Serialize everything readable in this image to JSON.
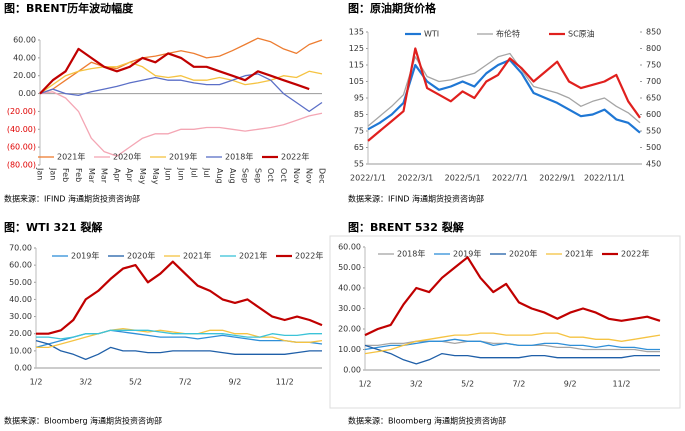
{
  "chart_data": [
    {
      "type": "line",
      "title": "图：BRENT历年波动幅度",
      "source": "数据来源：IFIND   海通期货投资咨询部",
      "categories": [
        "Jan",
        "Jan",
        "Feb",
        "Feb",
        "Mar",
        "Mar",
        "Apr",
        "Apr",
        "May",
        "May",
        "Jun",
        "Jun",
        "Jul",
        "Jul",
        "Aug",
        "Aug",
        "Sep",
        "Sep",
        "Oct",
        "Oct",
        "Nov",
        "Nov",
        "Dec"
      ],
      "ylim": [
        -80,
        60
      ],
      "yticks": [
        {
          "value": 60,
          "label": "60.00"
        },
        {
          "value": 40,
          "label": "40.00"
        },
        {
          "value": 20,
          "label": "20.00"
        },
        {
          "value": 0,
          "label": "0.00"
        },
        {
          "value": -20,
          "label": "(20.00)"
        },
        {
          "value": -40,
          "label": "(40.00)"
        },
        {
          "value": -60,
          "label": "(60.00)"
        },
        {
          "value": -80,
          "label": "(80.00)"
        }
      ],
      "grid": false,
      "rotate_x_labels": true,
      "series": [
        {
          "name": "2021年",
          "color": "#ed7d31",
          "values": [
            0,
            5,
            15,
            25,
            35,
            30,
            28,
            35,
            40,
            42,
            45,
            48,
            45,
            40,
            42,
            48,
            55,
            62,
            58,
            50,
            45,
            55,
            60
          ]
        },
        {
          "name": "2020年",
          "color": "#f4a6b4",
          "values": [
            0,
            2,
            -5,
            -20,
            -50,
            -65,
            -70,
            -60,
            -50,
            -45,
            -45,
            -40,
            -40,
            -38,
            -38,
            -40,
            -42,
            -40,
            -38,
            -35,
            -30,
            -25,
            -22
          ]
        },
        {
          "name": "2019年",
          "color": "#f5c342",
          "values": [
            0,
            10,
            20,
            25,
            28,
            30,
            30,
            35,
            30,
            20,
            18,
            20,
            15,
            15,
            18,
            15,
            10,
            12,
            15,
            20,
            18,
            25,
            22
          ]
        },
        {
          "name": "2018年",
          "color": "#5b6fc7",
          "values": [
            0,
            5,
            0,
            -2,
            2,
            5,
            8,
            12,
            15,
            18,
            15,
            15,
            12,
            10,
            10,
            15,
            20,
            22,
            15,
            0,
            -10,
            -20,
            -10
          ]
        },
        {
          "name": "2022年",
          "color": "#c00000",
          "values": [
            0,
            15,
            25,
            50,
            40,
            30,
            25,
            30,
            40,
            35,
            45,
            40,
            30,
            30,
            25,
            20,
            15,
            25,
            20,
            15,
            10,
            5,
            null
          ]
        }
      ]
    },
    {
      "type": "line",
      "title": "图：原油期货价格",
      "source": "数据来源：IFIND   海通期货投资咨询部",
      "categories": [
        "2022/1/1",
        null,
        null,
        null,
        "2022/3/1",
        null,
        null,
        null,
        "2022/5/1",
        null,
        null,
        null,
        "2022/7/1",
        null,
        null,
        null,
        "2022/9/1",
        null,
        null,
        null,
        "2022/11/1",
        null,
        null,
        null
      ],
      "ylim": [
        55,
        135
      ],
      "yticks": [
        55,
        65,
        75,
        85,
        95,
        105,
        115,
        125,
        135
      ],
      "y2lim": [
        450,
        850
      ],
      "y2ticks": [
        450,
        500,
        550,
        600,
        650,
        700,
        750,
        800,
        850
      ],
      "grid": false,
      "rotate_x_labels": false,
      "series": [
        {
          "name": "WTI",
          "color": "#1f77d4",
          "values": [
            76,
            80,
            85,
            92,
            115,
            105,
            100,
            102,
            105,
            102,
            110,
            115,
            118,
            110,
            98,
            95,
            92,
            88,
            84,
            85,
            88,
            82,
            80,
            74
          ]
        },
        {
          "name": "布伦特",
          "color": "#a5a5a5",
          "values": [
            78,
            84,
            90,
            97,
            120,
            108,
            105,
            106,
            108,
            110,
            115,
            120,
            122,
            112,
            102,
            100,
            98,
            95,
            90,
            93,
            95,
            90,
            86,
            80
          ]
        },
        {
          "name": "SC原油",
          "color": "#e0201e",
          "axis": "y2",
          "values": [
            520,
            550,
            580,
            610,
            800,
            680,
            660,
            640,
            670,
            650,
            700,
            720,
            770,
            740,
            700,
            730,
            760,
            700,
            680,
            690,
            700,
            720,
            640,
            590
          ]
        }
      ]
    },
    {
      "type": "line",
      "title": "图：WTI 321 裂解",
      "source": "数据来源：Bloomberg   海通期货投资咨询部",
      "categories": [
        "1/2",
        null,
        null,
        null,
        "3/2",
        null,
        null,
        null,
        "5/2",
        null,
        null,
        null,
        "7/2",
        null,
        null,
        null,
        "9/2",
        null,
        null,
        null,
        "11/2",
        null,
        null,
        null
      ],
      "ylim": [
        0,
        70
      ],
      "yticks": [
        {
          "value": 0,
          "label": "0.00"
        },
        {
          "value": 10,
          "label": "10.00"
        },
        {
          "value": 20,
          "label": "20.00"
        },
        {
          "value": 30,
          "label": "30.00"
        },
        {
          "value": 40,
          "label": "40.00"
        },
        {
          "value": 50,
          "label": "50.00"
        },
        {
          "value": 60,
          "label": "60.00"
        },
        {
          "value": 70,
          "label": "70.00"
        }
      ],
      "grid": false,
      "rotate_x_labels": false,
      "series": [
        {
          "name": "2019年",
          "color": "#2f8fd8",
          "values": [
            12,
            14,
            16,
            18,
            20,
            20,
            22,
            21,
            20,
            19,
            18,
            18,
            18,
            17,
            18,
            19,
            18,
            17,
            16,
            16,
            16,
            15,
            15,
            14
          ]
        },
        {
          "name": "2020年",
          "color": "#1f5fa8",
          "values": [
            16,
            14,
            10,
            8,
            5,
            8,
            12,
            10,
            10,
            9,
            9,
            10,
            10,
            10,
            10,
            9,
            8,
            8,
            8,
            8,
            8,
            9,
            10,
            10
          ]
        },
        {
          "name": "2021年",
          "color": "#f5c342",
          "values": [
            12,
            12,
            14,
            16,
            18,
            20,
            22,
            23,
            22,
            21,
            22,
            21,
            20,
            20,
            22,
            22,
            20,
            20,
            18,
            18,
            16,
            15,
            15,
            16
          ]
        },
        {
          "name": "2021年",
          "color": "#3cc3d8",
          "values": [
            18,
            18,
            17,
            18,
            20,
            20,
            22,
            22,
            22,
            22,
            21,
            20,
            20,
            20,
            20,
            20,
            19,
            18,
            18,
            20,
            19,
            19,
            20,
            20
          ]
        },
        {
          "name": "2022年",
          "color": "#c00000",
          "values": [
            20,
            20,
            22,
            28,
            40,
            45,
            52,
            58,
            60,
            50,
            55,
            62,
            55,
            48,
            45,
            40,
            38,
            40,
            35,
            30,
            28,
            30,
            28,
            25
          ]
        }
      ]
    },
    {
      "type": "line",
      "title": "图：BRENT 532 裂解",
      "source": "数据来源：Bloomberg   海通期货投资咨询部",
      "categories": [
        "1/2",
        null,
        null,
        null,
        "3/2",
        null,
        null,
        null,
        "5/2",
        null,
        null,
        null,
        "7/2",
        null,
        null,
        null,
        "9/2",
        null,
        null,
        null,
        "11/2",
        null,
        null,
        null
      ],
      "ylim": [
        0,
        60
      ],
      "yticks": [
        {
          "value": 0,
          "label": "0.00"
        },
        {
          "value": 10,
          "label": "10.00"
        },
        {
          "value": 20,
          "label": "20.00"
        },
        {
          "value": 30,
          "label": "30.00"
        },
        {
          "value": 40,
          "label": "40.00"
        },
        {
          "value": 50,
          "label": "50.00"
        },
        {
          "value": 60,
          "label": "60.00"
        }
      ],
      "grid": false,
      "rotate_x_labels": false,
      "series": [
        {
          "name": "2018年",
          "color": "#a5a5a5",
          "values": [
            12,
            12,
            13,
            13,
            14,
            14,
            14,
            13,
            14,
            14,
            13,
            13,
            12,
            12,
            12,
            11,
            11,
            10,
            10,
            10,
            10,
            10,
            9,
            9
          ]
        },
        {
          "name": "2019年",
          "color": "#2f8fd8",
          "values": [
            10,
            11,
            12,
            12,
            13,
            14,
            14,
            15,
            14,
            14,
            12,
            13,
            12,
            12,
            13,
            13,
            12,
            12,
            11,
            12,
            11,
            11,
            10,
            10
          ]
        },
        {
          "name": "2020年",
          "color": "#1f5fa8",
          "values": [
            12,
            10,
            8,
            5,
            3,
            5,
            8,
            7,
            7,
            6,
            6,
            6,
            6,
            7,
            7,
            6,
            6,
            6,
            6,
            6,
            6,
            7,
            7,
            7
          ]
        },
        {
          "name": "2021年",
          "color": "#f5c342",
          "values": [
            8,
            9,
            10,
            12,
            14,
            15,
            16,
            17,
            17,
            18,
            18,
            17,
            17,
            17,
            18,
            18,
            16,
            16,
            15,
            15,
            14,
            15,
            16,
            17
          ]
        },
        {
          "name": "2022年",
          "color": "#c00000",
          "values": [
            17,
            20,
            22,
            32,
            40,
            38,
            45,
            50,
            55,
            45,
            38,
            42,
            33,
            30,
            28,
            25,
            28,
            30,
            28,
            25,
            24,
            25,
            26,
            24
          ]
        }
      ]
    }
  ]
}
